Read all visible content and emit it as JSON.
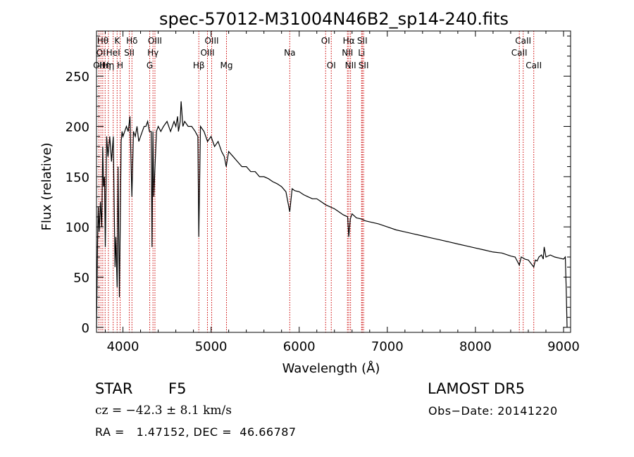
{
  "chart_data": {
    "type": "line",
    "title": "spec-57012-M31004N46B2_sp14-240.fits",
    "xlabel": "Wavelength (Å)",
    "ylabel": "Flux (relative)",
    "xlim": [
      3700,
      9080
    ],
    "ylim": [
      -5,
      295
    ],
    "x_ticks": [
      4000,
      5000,
      6000,
      7000,
      8000,
      9000
    ],
    "y_ticks": [
      0,
      50,
      100,
      150,
      200,
      250
    ],
    "x_tick_labels": [
      "4000",
      "5000",
      "6000",
      "7000",
      "8000",
      "9000"
    ],
    "y_tick_labels": [
      "0",
      "50",
      "100",
      "150",
      "200",
      "250"
    ],
    "grid": false,
    "line_color": "#000000",
    "marker_color": "#cc0000",
    "series": [
      {
        "x": [
          3700,
          3712,
          3720,
          3730,
          3745,
          3760,
          3770,
          3780,
          3790,
          3800,
          3815,
          3830,
          3850,
          3870,
          3890,
          3910,
          3920,
          3934,
          3945,
          3960,
          3968,
          3980,
          3990,
          4000,
          4020,
          4040,
          4060,
          4080,
          4101,
          4120,
          4140,
          4160,
          4180,
          4200,
          4220,
          4240,
          4260,
          4280,
          4300,
          4320,
          4330,
          4340,
          4350,
          4380,
          4400,
          4430,
          4460,
          4500,
          4540,
          4580,
          4600,
          4620,
          4630,
          4640,
          4650,
          4660,
          4680,
          4700,
          4740,
          4780,
          4820,
          4850,
          4861,
          4880,
          4920,
          4960,
          5000,
          5040,
          5080,
          5120,
          5150,
          5172,
          5200,
          5250,
          5300,
          5350,
          5400,
          5450,
          5500,
          5550,
          5600,
          5650,
          5700,
          5750,
          5800,
          5850,
          5893,
          5920,
          5950,
          6000,
          6050,
          6100,
          6150,
          6200,
          6250,
          6300,
          6350,
          6400,
          6450,
          6500,
          6550,
          6563,
          6580,
          6600,
          6650,
          6700,
          6750,
          6800,
          6900,
          7000,
          7100,
          7200,
          7300,
          7400,
          7500,
          7600,
          7700,
          7800,
          7900,
          8000,
          8100,
          8200,
          8300,
          8400,
          8450,
          8498,
          8520,
          8542,
          8560,
          8600,
          8662,
          8680,
          8700,
          8720,
          8750,
          8770,
          8780,
          8800,
          8850,
          8900,
          8950,
          9000,
          9020,
          9030,
          9040
        ],
        "y": [
          0,
          85,
          120,
          95,
          125,
          100,
          180,
          140,
          150,
          80,
          190,
          170,
          190,
          165,
          190,
          60,
          90,
          40,
          160,
          30,
          90,
          185,
          195,
          190,
          195,
          200,
          195,
          210,
          130,
          195,
          190,
          200,
          185,
          190,
          195,
          200,
          200,
          205,
          195,
          195,
          80,
          195,
          130,
          195,
          200,
          195,
          200,
          205,
          195,
          205,
          200,
          210,
          195,
          200,
          205,
          225,
          200,
          205,
          200,
          200,
          195,
          190,
          90,
          200,
          195,
          185,
          190,
          180,
          185,
          175,
          170,
          160,
          175,
          170,
          165,
          160,
          160,
          155,
          155,
          150,
          150,
          148,
          145,
          143,
          140,
          135,
          115,
          138,
          136,
          135,
          132,
          130,
          128,
          128,
          125,
          122,
          120,
          118,
          115,
          112,
          110,
          90,
          108,
          113,
          109,
          108,
          106,
          105,
          103,
          100,
          97,
          95,
          93,
          91,
          89,
          87,
          85,
          83,
          81,
          79,
          77,
          75,
          74,
          71,
          70,
          62,
          70,
          69,
          68,
          67,
          60,
          67,
          66,
          70,
          72,
          68,
          80,
          70,
          72,
          70,
          69,
          68,
          70,
          40,
          0
        ]
      }
    ],
    "line_markers": [
      {
        "w": 3727,
        "label": "OII",
        "row": 3
      },
      {
        "w": 3750,
        "label": "OI",
        "row": 2
      },
      {
        "w": 3771,
        "label": "Hθ",
        "row": 1
      },
      {
        "w": 3798,
        "label": "Hη",
        "row": 3
      },
      {
        "w": 3835,
        "label": "Hη",
        "row": 3
      },
      {
        "w": 3889,
        "label": "HeI",
        "row": 2
      },
      {
        "w": 3934,
        "label": "K",
        "row": 1
      },
      {
        "w": 3968,
        "label": "H",
        "row": 3
      },
      {
        "w": 4072,
        "label": "SII",
        "row": 2
      },
      {
        "w": 4102,
        "label": "Hδ",
        "row": 1
      },
      {
        "w": 4304,
        "label": "G",
        "row": 3
      },
      {
        "w": 4341,
        "label": "Hγ",
        "row": 2
      },
      {
        "w": 4363,
        "label": "OIII",
        "row": 1
      },
      {
        "w": 4861,
        "label": "Hβ",
        "row": 3
      },
      {
        "w": 4959,
        "label": "OIII",
        "row": 2
      },
      {
        "w": 5007,
        "label": "OIII",
        "row": 1
      },
      {
        "w": 5175,
        "label": "Mg",
        "row": 3
      },
      {
        "w": 5893,
        "label": "Na",
        "row": 2
      },
      {
        "w": 6300,
        "label": "OI",
        "row": 1
      },
      {
        "w": 6364,
        "label": "OI",
        "row": 3
      },
      {
        "w": 6548,
        "label": "NII",
        "row": 2
      },
      {
        "w": 6563,
        "label": "Hα",
        "row": 1
      },
      {
        "w": 6583,
        "label": "NII",
        "row": 3
      },
      {
        "w": 6708,
        "label": "Li",
        "row": 2
      },
      {
        "w": 6716,
        "label": "SII",
        "row": 1
      },
      {
        "w": 6731,
        "label": "SII",
        "row": 3
      },
      {
        "w": 8498,
        "label": "CaII",
        "row": 2
      },
      {
        "w": 8542,
        "label": "CaII",
        "row": 1
      },
      {
        "w": 8662,
        "label": "CaII",
        "row": 3
      }
    ]
  },
  "info": {
    "object_class": "STAR",
    "subclass": "F5",
    "survey": "LAMOST DR5",
    "redshift_text": "cz = −42.3 ± 8.1 km/s",
    "obs_date_text": "Obs−Date: 20141220",
    "coords_text": "RA =   1.47152, DEC =  46.66787"
  }
}
